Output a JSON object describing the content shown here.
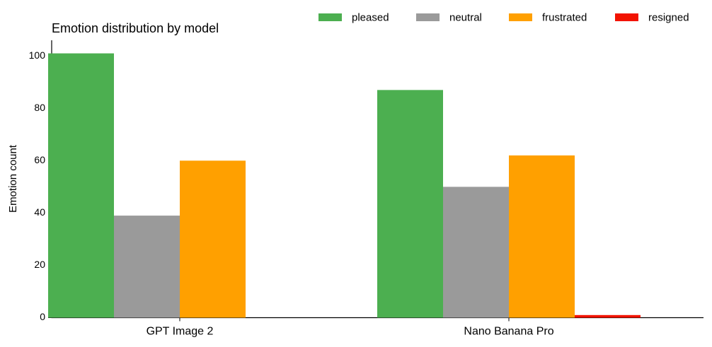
{
  "chart_data": {
    "type": "bar",
    "title": "Emotion distribution by model",
    "ylabel": "Emotion count",
    "categories": [
      "GPT Image 2",
      "Nano Banana Pro"
    ],
    "series": [
      {
        "name": "pleased",
        "color": "#4caf50",
        "values": [
          101,
          87
        ]
      },
      {
        "name": "neutral",
        "color": "#9a9a9a",
        "values": [
          39,
          50
        ]
      },
      {
        "name": "frustrated",
        "color": "#ffa000",
        "values": [
          60,
          62
        ]
      },
      {
        "name": "resigned",
        "color": "#f21300",
        "values": [
          0,
          1
        ]
      }
    ],
    "ylim": [
      0,
      106
    ],
    "yticks": [
      0,
      20,
      40,
      60,
      80,
      100
    ],
    "legend": "top-right",
    "grid": false
  }
}
